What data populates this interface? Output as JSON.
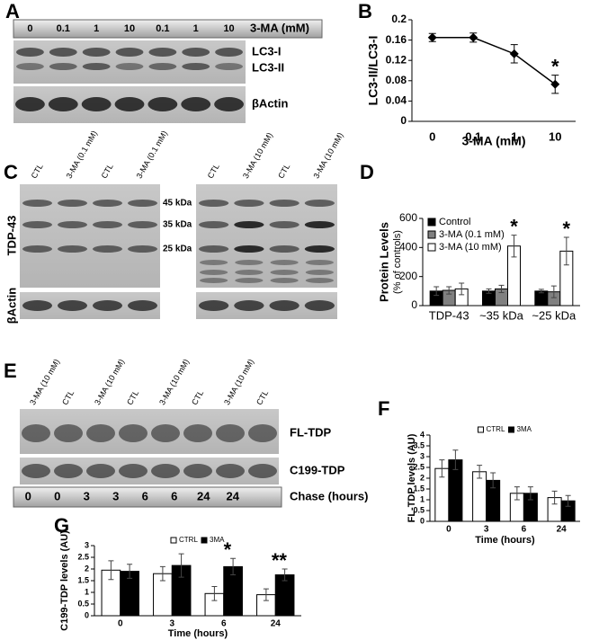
{
  "figure": {
    "panel_labels": [
      "A",
      "B",
      "C",
      "D",
      "E",
      "F",
      "G"
    ]
  },
  "blot_a": {
    "lanes": [
      "0",
      "0.1",
      "1",
      "10",
      "0.1",
      "1",
      "10"
    ],
    "treatment": "3-MA (mM)",
    "bands": [
      "LC3-I",
      "LC3-II"
    ],
    "loading": "βActin"
  },
  "blot_c": {
    "lanes_left": [
      "CTL",
      "3-MA (0.1 mM)",
      "CTL",
      "3-MA (0.1 mM)"
    ],
    "lanes_right": [
      "CTL",
      "3-MA (10 mM)",
      "CTL",
      "3-MA (10 mM)"
    ],
    "markers": [
      "45 kDa",
      "35 kDa",
      "25 kDa"
    ],
    "protein": "TDP-43",
    "loading": "βActin"
  },
  "blot_e": {
    "lanes": [
      "3-MA (10 mM)",
      "CTL",
      "3-MA (10 mM)",
      "CTL",
      "3-MA (10 mM)",
      "CTL",
      "3-MA (10 mM)",
      "CTL"
    ],
    "bands": [
      "FL-TDP",
      "C199-TDP"
    ],
    "chase": [
      "0",
      "0",
      "3",
      "3",
      "6",
      "6",
      "24",
      "24"
    ],
    "chase_label": "Chase (hours)"
  },
  "chart_data": [
    {
      "type": "line",
      "categories": [
        "0",
        "0.1",
        "1",
        "10"
      ],
      "values": [
        0.165,
        0.165,
        0.133,
        0.073
      ],
      "errors": [
        0.008,
        0.009,
        0.018,
        0.018
      ],
      "color": "#000000",
      "ylim": [
        0,
        0.2
      ],
      "yticks": [
        0,
        0.04,
        0.08,
        0.12,
        0.16,
        0.2
      ],
      "xlabel": "3-MA (mM)",
      "ylabel": "LC3-II/LC3-I",
      "annotations": [
        null,
        null,
        null,
        "*"
      ],
      "grid": false
    },
    {
      "type": "bar",
      "categories": [
        "TDP-43",
        "~35 kDa",
        "~25 kDa"
      ],
      "series": [
        {
          "name": "Control",
          "color": "#000000",
          "values": [
            100,
            100,
            100
          ],
          "errors": [
            30,
            15,
            12
          ]
        },
        {
          "name": "3-MA (0.1 mM)",
          "color": "#808080",
          "values": [
            105,
            115,
            95
          ],
          "errors": [
            25,
            25,
            40
          ]
        },
        {
          "name": "3-MA (10 mM)",
          "color": "#ffffff",
          "values": [
            115,
            410,
            375
          ],
          "errors": [
            40,
            75,
            95
          ]
        }
      ],
      "ylim": [
        0,
        600
      ],
      "yticks": [
        0,
        200,
        400,
        600
      ],
      "ylabel": "Protein Levels",
      "ylabel_sub": "(% of controls)",
      "annotations": [
        null,
        "*",
        "*"
      ],
      "legend": "upper left",
      "grid": false
    },
    {
      "type": "bar",
      "categories": [
        "0",
        "3",
        "6",
        "24"
      ],
      "series": [
        {
          "name": "CTRL",
          "color": "#ffffff",
          "values": [
            2.45,
            2.3,
            1.3,
            1.1
          ],
          "errors": [
            0.4,
            0.3,
            0.3,
            0.3
          ]
        },
        {
          "name": "3MA",
          "color": "#000000",
          "values": [
            2.85,
            1.9,
            1.3,
            0.95
          ],
          "errors": [
            0.45,
            0.35,
            0.3,
            0.25
          ]
        }
      ],
      "ylim": [
        0,
        4
      ],
      "yticks": [
        0,
        0.5,
        1,
        1.5,
        2,
        2.5,
        3,
        3.5,
        4
      ],
      "xlabel": "Time (hours)",
      "ylabel": "FL-TDP levels (AU)",
      "legend": "upper center",
      "grid": false
    },
    {
      "type": "bar",
      "categories": [
        "0",
        "3",
        "6",
        "24"
      ],
      "series": [
        {
          "name": "CTRL",
          "color": "#ffffff",
          "values": [
            1.95,
            1.8,
            0.95,
            0.9
          ],
          "errors": [
            0.4,
            0.3,
            0.3,
            0.25
          ]
        },
        {
          "name": "3MA",
          "color": "#000000",
          "values": [
            1.9,
            2.15,
            2.1,
            1.75
          ],
          "errors": [
            0.3,
            0.5,
            0.35,
            0.25
          ]
        }
      ],
      "ylim": [
        0,
        3
      ],
      "yticks": [
        0,
        0.5,
        1,
        1.5,
        2,
        2.5,
        3
      ],
      "xlabel": "Time (hours)",
      "ylabel": "C199-TDP levels (AU)",
      "annotations": [
        null,
        null,
        "*",
        "**"
      ],
      "legend": "upper center",
      "grid": false
    }
  ]
}
